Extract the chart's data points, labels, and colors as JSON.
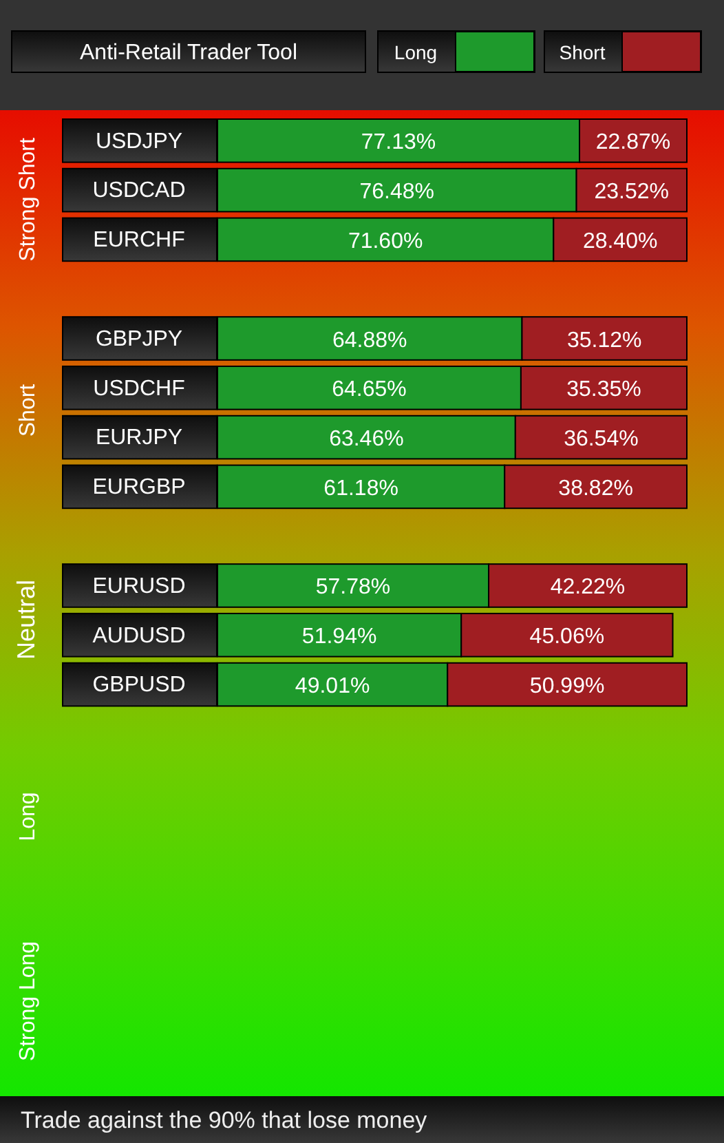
{
  "chart_data": {
    "type": "bar",
    "orientation": "horizontal",
    "stacked": true,
    "title": "Anti-Retail Trader Tool",
    "categories": [
      "USDJPY",
      "USDCAD",
      "EURCHF",
      null,
      "GBPJPY",
      "USDCHF",
      "EURJPY",
      "EURGBP",
      null,
      "EURUSD",
      "AUDUSD",
      "GBPUSD"
    ],
    "series": [
      {
        "name": "Long",
        "color": "#1e9a2c",
        "values": [
          77.13,
          76.48,
          71.6,
          null,
          64.88,
          64.65,
          63.46,
          61.18,
          null,
          57.78,
          51.94,
          49.01
        ],
        "value_labels": [
          "77.13%",
          "76.48%",
          "71.60%",
          null,
          "64.88%",
          "64.65%",
          "63.46%",
          "61.18%",
          null,
          "57.78%",
          "51.94%",
          "49.01%"
        ]
      },
      {
        "name": "Short",
        "color": "#a01e22",
        "values": [
          22.87,
          23.52,
          28.4,
          null,
          35.12,
          35.35,
          36.54,
          38.82,
          null,
          42.22,
          45.06,
          50.99
        ],
        "value_labels": [
          "22.87%",
          "23.52%",
          "28.40%",
          null,
          "35.12%",
          "35.35%",
          "36.54%",
          "38.82%",
          null,
          "42.22%",
          "45.06%",
          "50.99%"
        ]
      }
    ],
    "xlim": [
      0,
      100
    ],
    "tick_labels": "y",
    "legend": "top",
    "grid": false,
    "annotations": [
      "Strong Short",
      "Short",
      "Neutral",
      "Long",
      "Strong Long",
      "Trade against the 90% that lose money"
    ]
  }
}
